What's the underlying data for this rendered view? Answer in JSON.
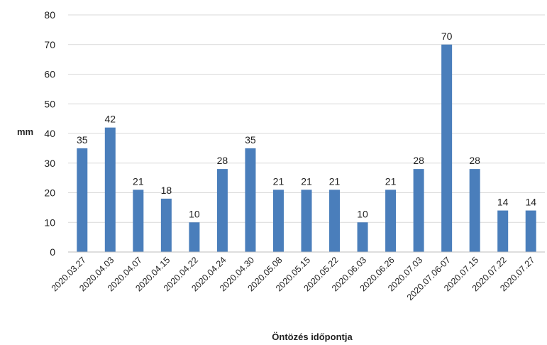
{
  "chart_data": {
    "type": "bar",
    "title": "",
    "xlabel": "Öntözés időpontja",
    "ylabel": "mm",
    "ylim": [
      0,
      80
    ],
    "yticks": [
      0,
      10,
      20,
      30,
      40,
      50,
      60,
      70,
      80
    ],
    "grid": true,
    "legend": "none",
    "bar_color": "#4a7ebb",
    "categories": [
      "2020.03.27",
      "2020.04.03",
      "2020.04.07",
      "2020.04.15",
      "2020.04.22",
      "2020.04.24",
      "2020.04.30",
      "2020.05.08",
      "2020.05.15",
      "2020.05.22",
      "2020.06.03",
      "2020.06.26",
      "2020.07.03",
      "2020.07.06-07",
      "2020.07.15",
      "2020.07.22",
      "2020.07.27"
    ],
    "values": [
      35,
      42,
      21,
      18,
      10,
      28,
      35,
      21,
      21,
      21,
      10,
      21,
      28,
      70,
      28,
      14,
      14
    ]
  }
}
